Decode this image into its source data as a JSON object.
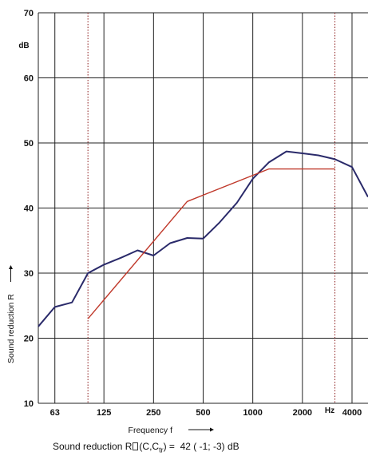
{
  "chart_data": {
    "type": "line",
    "title": "",
    "xlabel": "Frequency f",
    "ylabel": "Sound reduction R",
    "y_unit": "dB",
    "x_unit": "Hz",
    "x_scale": "log",
    "xlim_hz": [
      50,
      5000
    ],
    "ylim": [
      10,
      70
    ],
    "y_ticks": [
      10,
      20,
      30,
      40,
      50,
      60,
      70
    ],
    "x_tick_labels": [
      "63",
      "125",
      "250",
      "500",
      "1000",
      "2000",
      "4000"
    ],
    "x_tick_values": [
      63,
      125,
      250,
      500,
      1000,
      2000,
      4000
    ],
    "grid": true,
    "dotted_markers_hz": [
      100,
      3150
    ],
    "x_data": [
      50,
      63,
      80,
      100,
      125,
      160,
      200,
      250,
      315,
      400,
      500,
      630,
      800,
      1000,
      1250,
      1600,
      2000,
      2500,
      3150,
      4000,
      5000
    ],
    "series": [
      {
        "name": "",
        "color": "#2a2a6a",
        "x": [
          50,
          63,
          80,
          100,
          125,
          160,
          200,
          250,
          315,
          400,
          500,
          630,
          800,
          1000,
          1250,
          1600,
          2000,
          2500,
          3150,
          4000,
          5000
        ],
        "values": [
          21.8,
          24.8,
          25.5,
          30.0,
          31.3,
          32.4,
          33.5,
          32.7,
          34.6,
          35.4,
          35.3,
          37.8,
          40.8,
          44.5,
          47.0,
          48.7,
          48.4,
          48.1,
          47.5,
          46.3,
          41.7
        ]
      },
      {
        "name": "",
        "color": "#c0392b",
        "x": [
          100,
          400,
          1250,
          3150
        ],
        "values": [
          23.0,
          41.0,
          46.0,
          46.0
        ]
      }
    ],
    "caption": {
      "prefix": "Sound reduction R",
      "suffix": "(C,C",
      "subscript": "tr",
      "close": ") =",
      "value": "42 ( -1; -3) dB"
    }
  }
}
